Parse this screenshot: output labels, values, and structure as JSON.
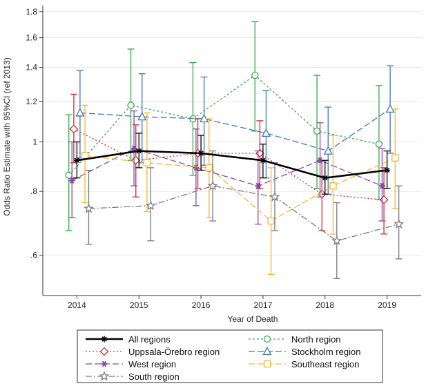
{
  "chart_data": {
    "type": "line",
    "ylabel": "Odds Ratio Estimate with 95%CI (ref 2013)",
    "xlabel": "Year of Death",
    "x": [
      2014,
      2015,
      2016,
      2017,
      2018,
      2019
    ],
    "x_tick_labels": [
      "2014",
      "2015",
      "2016",
      "2017",
      "2018",
      "2019"
    ],
    "y_scale": "log",
    "ylim": [
      0.5,
      1.85
    ],
    "y_ticks": [
      0.6,
      0.8,
      1.0,
      1.2,
      1.4,
      1.6,
      1.8
    ],
    "y_tick_labels": [
      ".6",
      ".8",
      "1",
      "1.2",
      "1.4",
      "1.6",
      "1.8"
    ],
    "grid": true,
    "legend_position": "bottom",
    "series": [
      {
        "name": "All regions",
        "color": "#000000",
        "dash": "solid",
        "marker": "asterisk",
        "offset": 0,
        "values": [
          0.92,
          0.96,
          0.95,
          0.92,
          0.85,
          0.88
        ],
        "ci_low": [
          0.85,
          0.89,
          0.88,
          0.85,
          0.79,
          0.81
        ],
        "ci_high": [
          1.0,
          1.04,
          1.03,
          0.99,
          0.92,
          0.96
        ]
      },
      {
        "name": "North region",
        "color": "#3aa74a",
        "dash": "short-dash",
        "marker": "circle",
        "offset": -0.13,
        "values": [
          0.86,
          1.18,
          1.11,
          1.35,
          1.05,
          0.99
        ],
        "ci_low": [
          0.67,
          0.92,
          0.86,
          1.05,
          0.81,
          0.77
        ],
        "ci_high": [
          1.13,
          1.52,
          1.43,
          1.72,
          1.35,
          1.29
        ]
      },
      {
        "name": "Uppsala-Örebro region",
        "color": "#d62a2a",
        "dash": "dot",
        "marker": "diamond",
        "offset": -0.05,
        "values": [
          1.06,
          0.92,
          0.95,
          0.95,
          0.79,
          0.77
        ],
        "ci_low": [
          0.91,
          0.78,
          0.81,
          0.81,
          0.67,
          0.66
        ],
        "ci_high": [
          1.24,
          1.08,
          1.11,
          1.1,
          0.92,
          0.89
        ]
      },
      {
        "name": "Stockholm region",
        "color": "#3f74b8",
        "dash": "long-dash",
        "marker": "triangle",
        "offset": 0.05,
        "values": [
          1.14,
          1.12,
          1.11,
          1.04,
          0.96,
          1.16
        ],
        "ci_low": [
          0.93,
          0.91,
          0.9,
          0.85,
          0.79,
          0.95
        ],
        "ci_high": [
          1.38,
          1.36,
          1.34,
          1.26,
          1.17,
          1.41
        ]
      },
      {
        "name": "West region",
        "color": "#8d47a8",
        "dash": "long-dash",
        "marker": "star",
        "offset": -0.08,
        "values": [
          0.84,
          0.97,
          0.89,
          0.82,
          0.92,
          0.82
        ],
        "ci_low": [
          0.71,
          0.82,
          0.75,
          0.69,
          0.78,
          0.7
        ],
        "ci_high": [
          1.0,
          1.15,
          1.06,
          0.96,
          1.09,
          0.97
        ]
      },
      {
        "name": "Southeast region",
        "color": "#f2b632",
        "dash": "long-dash",
        "marker": "square",
        "offset": 0.13,
        "values": [
          0.94,
          0.91,
          0.89,
          0.7,
          0.82,
          0.93
        ],
        "ci_low": [
          0.76,
          0.73,
          0.71,
          0.55,
          0.66,
          0.74
        ],
        "ci_high": [
          1.18,
          1.14,
          1.11,
          0.89,
          1.03,
          1.16
        ]
      },
      {
        "name": "South region",
        "color": "#7a7a7a",
        "dash": "dash-dot",
        "marker": "star-outline",
        "offset": 0.19,
        "values": [
          0.74,
          0.75,
          0.82,
          0.78,
          0.64,
          0.69
        ],
        "ci_low": [
          0.63,
          0.64,
          0.7,
          0.67,
          0.54,
          0.59
        ],
        "ci_high": [
          0.88,
          0.89,
          0.96,
          0.91,
          0.76,
          0.82
        ]
      }
    ],
    "legend_layout": [
      [
        "All regions",
        "North region"
      ],
      [
        "Uppsala-Örebro region",
        "Stockholm region"
      ],
      [
        "West region",
        "Southeast region"
      ],
      [
        "South region",
        null
      ]
    ]
  }
}
